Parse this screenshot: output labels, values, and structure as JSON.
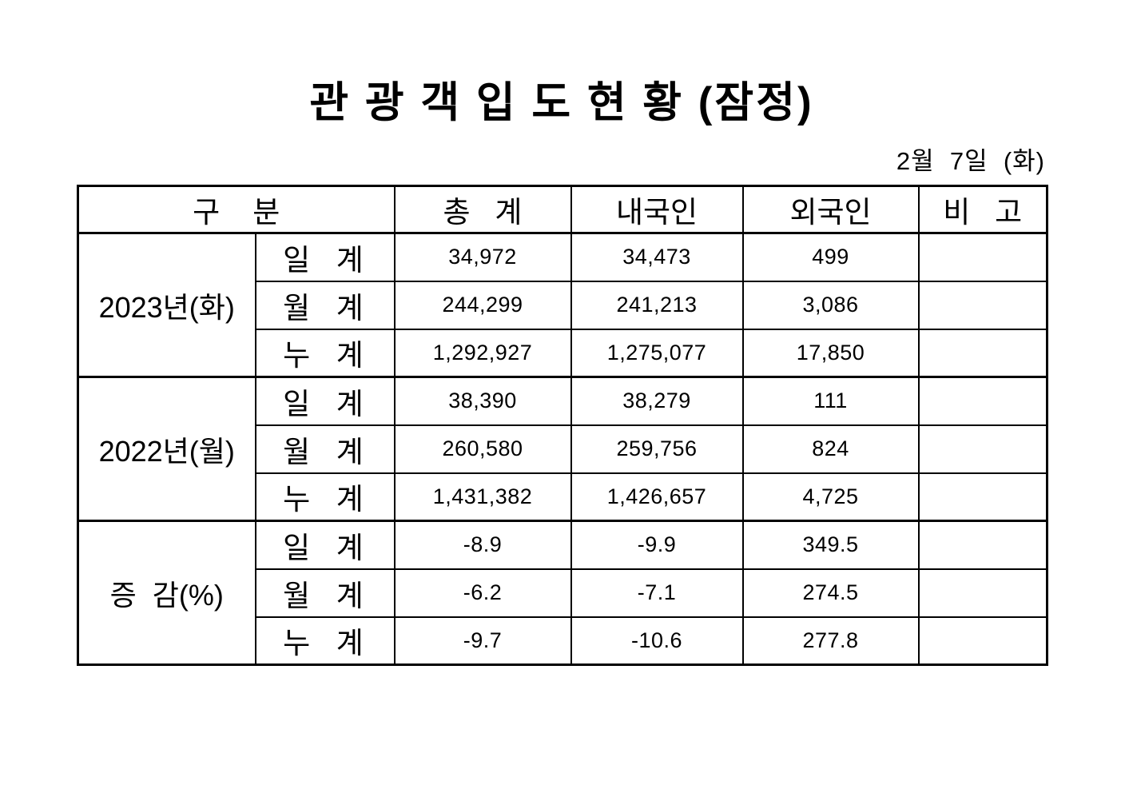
{
  "page": {
    "title": "관 광 객 입 도 현 황 (잠정)",
    "date": "2월  7일  (화)"
  },
  "table": {
    "headers": {
      "category": "구    분",
      "total": "총   계",
      "domestic": "내국인",
      "foreign": "외국인",
      "remarks": "비   고"
    },
    "groups": [
      {
        "label": "2023년(화)",
        "rows": [
          {
            "label": "일  계",
            "total": "34,972",
            "domestic": "34,473",
            "foreign": "499",
            "remarks": ""
          },
          {
            "label": "월  계",
            "total": "244,299",
            "domestic": "241,213",
            "foreign": "3,086",
            "remarks": ""
          },
          {
            "label": "누  계",
            "total": "1,292,927",
            "domestic": "1,275,077",
            "foreign": "17,850",
            "remarks": ""
          }
        ]
      },
      {
        "label": "2022년(월)",
        "rows": [
          {
            "label": "일  계",
            "total": "38,390",
            "domestic": "38,279",
            "foreign": "111",
            "remarks": ""
          },
          {
            "label": "월  계",
            "total": "260,580",
            "domestic": "259,756",
            "foreign": "824",
            "remarks": ""
          },
          {
            "label": "누  계",
            "total": "1,431,382",
            "domestic": "1,426,657",
            "foreign": "4,725",
            "remarks": ""
          }
        ]
      },
      {
        "label": "증  감(%)",
        "rows": [
          {
            "label": "일  계",
            "total": "-8.9",
            "domestic": "-9.9",
            "foreign": "349.5",
            "remarks": ""
          },
          {
            "label": "월  계",
            "total": "-6.2",
            "domestic": "-7.1",
            "foreign": "274.5",
            "remarks": ""
          },
          {
            "label": "누  계",
            "total": "-9.7",
            "domestic": "-10.6",
            "foreign": "277.8",
            "remarks": ""
          }
        ]
      }
    ]
  }
}
